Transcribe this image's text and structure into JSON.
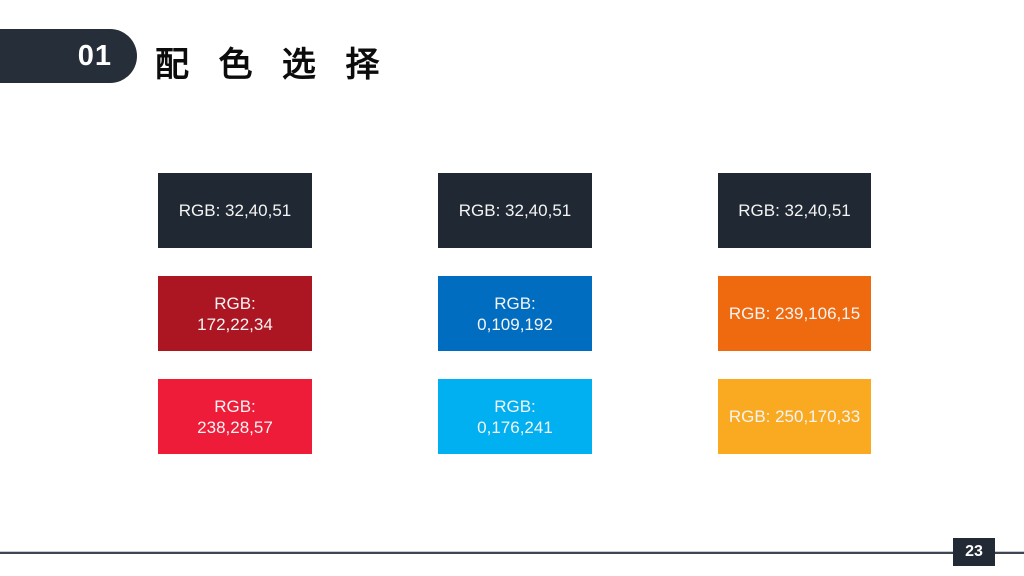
{
  "slide": {
    "section_number": "01",
    "title": "配 色 选 择",
    "page_number": "23"
  },
  "colors": {
    "section_badge_bg": "#252e39",
    "page_badge_bg": "#222a35",
    "divider_dark": "#3d4453",
    "divider_light": "#c7cad5",
    "title_text": "#0c0c0c",
    "swatch_text": "#f4f4f4"
  },
  "palette": {
    "cells": [
      {
        "label": "RGB: 32,40,51",
        "color": "#202833"
      },
      {
        "label": "RGB: 32,40,51",
        "color": "#202833"
      },
      {
        "label": "RGB: 32,40,51",
        "color": "#202833"
      },
      {
        "label": "RGB:\n172,22,34",
        "color": "#AC1622"
      },
      {
        "label": "RGB:\n0,109,192",
        "color": "#006DC0"
      },
      {
        "label": "RGB: 239,106,15",
        "color": "#EF6A0F"
      },
      {
        "label": "RGB:\n238,28,57",
        "color": "#EE1C39"
      },
      {
        "label": "RGB:\n0,176,241",
        "color": "#00B0F1"
      },
      {
        "label": "RGB: 250,170,33",
        "color": "#FAAA21"
      }
    ]
  }
}
